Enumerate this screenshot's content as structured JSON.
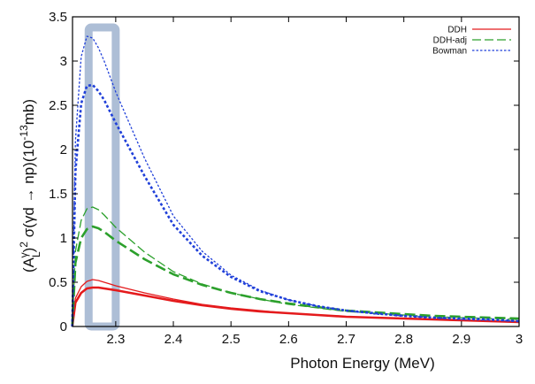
{
  "chart_data": {
    "type": "line",
    "xlabel": "Photon Energy (MeV)",
    "ylabel": "(A_L^γ)^2 σ(γd → np)(10^-13 mb)",
    "ylabel_parts": {
      "a": "(A",
      "a_sub": "L",
      "a_sup": "γ",
      "b": ")",
      "b_sup": "2",
      "c": " σ(γd → np)(10",
      "c_sup": "-13",
      "d": "mb)"
    },
    "xlim": [
      2.225,
      3.0
    ],
    "ylim": [
      0,
      3.5
    ],
    "x_ticks": [
      2.3,
      2.4,
      2.5,
      2.6,
      2.7,
      2.8,
      2.9,
      3.0
    ],
    "x_tick_labels": [
      "2.3",
      "2.4",
      "2.5",
      "2.6",
      "2.7",
      "2.8",
      "2.9",
      "3"
    ],
    "y_ticks": [
      0,
      0.5,
      1,
      1.5,
      2,
      2.5,
      3,
      3.5
    ],
    "y_tick_labels": [
      "0",
      "0.5",
      "1",
      "1.5",
      "2",
      "2.5",
      "3",
      "3.5"
    ],
    "legend_position": "top-right",
    "legend": [
      {
        "label": "DDH",
        "color": "#e41a1c",
        "dash": "solid"
      },
      {
        "label": "DDH-adj",
        "color": "#2ca02c",
        "dash": "dashed"
      },
      {
        "label": "Bowman",
        "color": "#1f3fd9",
        "dash": "dotted"
      }
    ],
    "highlight_band": {
      "x_range": [
        2.253,
        2.3
      ],
      "y_range": [
        0,
        3.38
      ],
      "color": "#9fb3cf"
    },
    "x": [
      2.2245,
      2.23,
      2.24,
      2.25,
      2.26,
      2.27,
      2.28,
      2.3,
      2.35,
      2.4,
      2.45,
      2.5,
      2.55,
      2.6,
      2.65,
      2.7,
      2.75,
      2.8,
      2.85,
      2.9,
      2.95,
      3.0
    ],
    "series": [
      {
        "name": "DDH",
        "group": "DDH",
        "color": "#e41a1c",
        "dash": "solid",
        "width": 1.3,
        "values": [
          0,
          0.32,
          0.45,
          0.51,
          0.53,
          0.52,
          0.5,
          0.46,
          0.38,
          0.31,
          0.25,
          0.21,
          0.18,
          0.15,
          0.13,
          0.11,
          0.1,
          0.09,
          0.08,
          0.07,
          0.06,
          0.05
        ]
      },
      {
        "name": "DDH (thick)",
        "group": "DDH",
        "color": "#e41a1c",
        "dash": "solid",
        "width": 2.6,
        "values": [
          0,
          0.27,
          0.38,
          0.43,
          0.44,
          0.44,
          0.43,
          0.41,
          0.35,
          0.29,
          0.24,
          0.2,
          0.17,
          0.15,
          0.13,
          0.11,
          0.1,
          0.09,
          0.08,
          0.07,
          0.06,
          0.05
        ]
      },
      {
        "name": "DDH-adj",
        "group": "DDH-adj",
        "color": "#2ca02c",
        "dash": "dashed",
        "width": 1.3,
        "values": [
          0,
          0.85,
          1.2,
          1.33,
          1.35,
          1.32,
          1.26,
          1.12,
          0.84,
          0.62,
          0.48,
          0.38,
          0.31,
          0.25,
          0.21,
          0.17,
          0.15,
          0.13,
          0.11,
          0.1,
          0.09,
          0.08
        ]
      },
      {
        "name": "DDH-adj (thick)",
        "group": "DDH-adj",
        "color": "#2ca02c",
        "dash": "dashed",
        "width": 2.6,
        "values": [
          0,
          0.72,
          1.0,
          1.1,
          1.13,
          1.11,
          1.07,
          0.97,
          0.76,
          0.59,
          0.47,
          0.38,
          0.31,
          0.26,
          0.22,
          0.18,
          0.16,
          0.14,
          0.12,
          0.11,
          0.1,
          0.09
        ]
      },
      {
        "name": "Bowman",
        "group": "Bowman",
        "color": "#1f3fd9",
        "dash": "dotted",
        "width": 1.3,
        "values": [
          0,
          2.1,
          3.05,
          3.28,
          3.26,
          3.15,
          3.0,
          2.65,
          1.9,
          1.25,
          0.85,
          0.58,
          0.41,
          0.3,
          0.23,
          0.18,
          0.14,
          0.12,
          0.1,
          0.08,
          0.07,
          0.06
        ]
      },
      {
        "name": "Bowman (thick)",
        "group": "Bowman",
        "color": "#1f3fd9",
        "dash": "dotted",
        "width": 2.6,
        "values": [
          0,
          1.75,
          2.52,
          2.72,
          2.73,
          2.66,
          2.56,
          2.3,
          1.7,
          1.15,
          0.8,
          0.56,
          0.4,
          0.3,
          0.23,
          0.18,
          0.15,
          0.12,
          0.1,
          0.09,
          0.08,
          0.06
        ]
      }
    ]
  }
}
